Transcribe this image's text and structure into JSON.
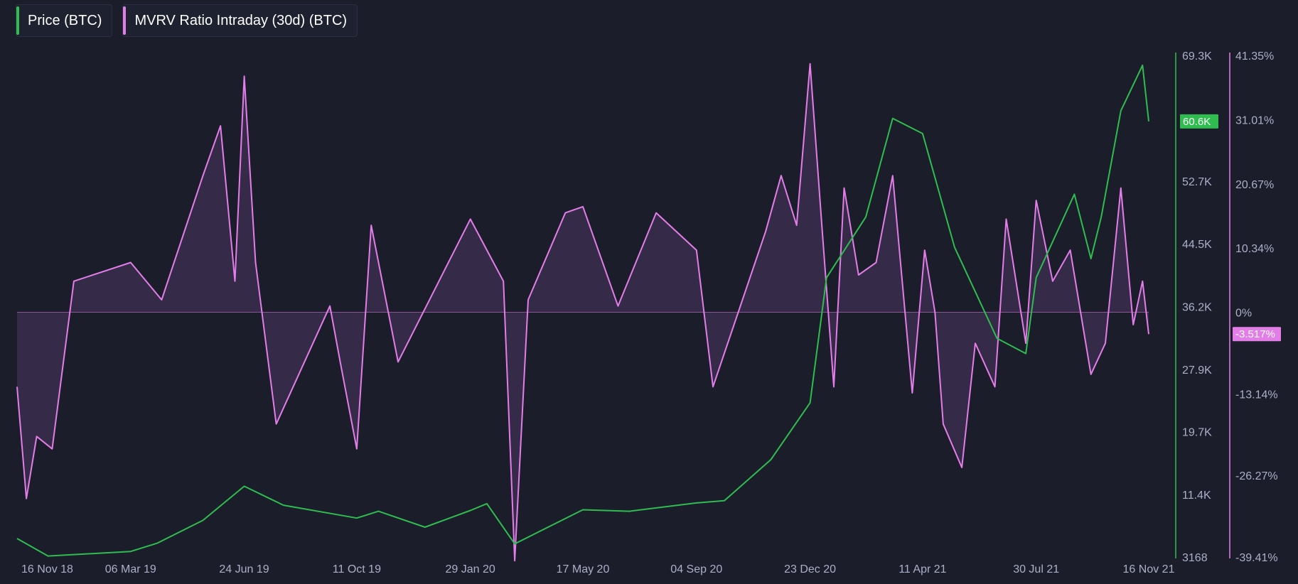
{
  "legend": {
    "price_label": "Price (BTC)",
    "mvrv_label": "MVRV Ratio Intraday (30d) (BTC)"
  },
  "colors": {
    "background": "#1b1d2b",
    "price": "#2ebd4e",
    "mvrv": "#e37ee8",
    "mvrv_fill": "#4a3560",
    "axis_text": "#aab0c6"
  },
  "chart_data": {
    "type": "line",
    "x_tick_labels": [
      "16 Nov 18",
      "06 Mar 19",
      "24 Jun 19",
      "11 Oct 19",
      "29 Jan 20",
      "17 May 20",
      "04 Sep 20",
      "23 Dec 20",
      "11 Apr 21",
      "30 Jul 21",
      "16 Nov 21"
    ],
    "x_range": [
      "16 Nov 18",
      "16 Nov 21"
    ],
    "price_axis": {
      "tick_labels": [
        "69.3K",
        "60.6K",
        "52.7K",
        "44.5K",
        "36.2K",
        "27.9K",
        "19.7K",
        "11.4K",
        "3168"
      ],
      "tick_values": [
        69300,
        60600,
        52700,
        44500,
        36200,
        27900,
        19700,
        11400,
        3168
      ],
      "current_value_label": "60.6K",
      "range": [
        3168,
        69300
      ]
    },
    "mvrv_axis": {
      "tick_labels": [
        "41.35%",
        "31.01%",
        "20.67%",
        "10.34%",
        "0%",
        "-13.14%",
        "-26.27%",
        "-39.41%"
      ],
      "current_value_label": "-3.517%",
      "range": [
        -39.41,
        41.35
      ]
    },
    "series": [
      {
        "name": "Price (BTC)",
        "axis": "price",
        "x": [
          "16 Nov 18",
          "16 Dec 18",
          "06 Mar 19",
          "01 Apr 19",
          "15 May 19",
          "24 Jun 19",
          "01 Aug 19",
          "11 Oct 19",
          "01 Nov 19",
          "16 Dec 19",
          "29 Jan 20",
          "14 Feb 20",
          "12 Mar 20",
          "17 May 20",
          "01 Jul 20",
          "04 Sep 20",
          "01 Oct 20",
          "15 Nov 20",
          "23 Dec 20",
          "08 Jan 21",
          "15 Feb 21",
          "13 Mar 21",
          "11 Apr 21",
          "12 May 21",
          "22 Jun 21",
          "20 Jul 21",
          "30 Jul 21",
          "05 Sep 21",
          "21 Sep 21",
          "01 Oct 21",
          "20 Oct 21",
          "10 Nov 21",
          "16 Nov 21"
        ],
        "values": [
          5600,
          3300,
          3900,
          5000,
          8000,
          12500,
          10000,
          8300,
          9200,
          7100,
          9300,
          10200,
          4900,
          9400,
          9200,
          10300,
          10600,
          16000,
          23500,
          40000,
          48000,
          61000,
          59000,
          44000,
          32000,
          30000,
          40000,
          51000,
          42500,
          48000,
          62000,
          68000,
          60600
        ]
      },
      {
        "name": "MVRV Ratio Intraday (30d) (BTC)",
        "axis": "mvrv",
        "x": [
          "16 Nov 18",
          "25 Nov 18",
          "05 Dec 18",
          "20 Dec 18",
          "10 Jan 19",
          "06 Mar 19",
          "05 Apr 19",
          "15 May 19",
          "01 Jun 19",
          "15 Jun 19",
          "24 Jun 19",
          "05 Jul 19",
          "25 Jul 19",
          "15 Sep 19",
          "25 Sep 19",
          "11 Oct 19",
          "25 Oct 19",
          "20 Nov 19",
          "29 Jan 20",
          "01 Mar 20",
          "12 Mar 20",
          "25 Mar 20",
          "30 Apr 20",
          "17 May 20",
          "20 Jun 20",
          "27 Jul 20",
          "04 Sep 20",
          "20 Sep 20",
          "10 Nov 20",
          "25 Nov 20",
          "10 Dec 20",
          "23 Dec 20",
          "03 Jan 21",
          "15 Jan 21",
          "25 Jan 21",
          "08 Feb 21",
          "25 Feb 21",
          "13 Mar 21",
          "01 Apr 21",
          "13 Apr 21",
          "23 Apr 21",
          "01 May 21",
          "19 May 21",
          "01 Jun 21",
          "20 Jun 21",
          "01 Jul 21",
          "20 Jul 21",
          "30 Jul 21",
          "15 Aug 21",
          "01 Sep 21",
          "21 Sep 21",
          "05 Oct 21",
          "20 Oct 21",
          "01 Nov 21",
          "10 Nov 21",
          "16 Nov 21"
        ],
        "values": [
          -12,
          -30,
          -20,
          -22,
          5,
          8,
          2,
          22,
          30,
          5,
          38,
          8,
          -18,
          1,
          -8,
          -22,
          14,
          -8,
          15,
          5,
          -40,
          2,
          16,
          17,
          1,
          16,
          10,
          -12,
          13,
          22,
          14,
          40,
          15,
          -12,
          20,
          6,
          8,
          22,
          -13,
          10,
          0,
          -18,
          -25,
          -5,
          -12,
          15,
          -5,
          18,
          5,
          10,
          -10,
          -5,
          20,
          -2,
          5,
          -3.517
        ]
      }
    ],
    "grid": false,
    "legend_position": "top-left"
  }
}
